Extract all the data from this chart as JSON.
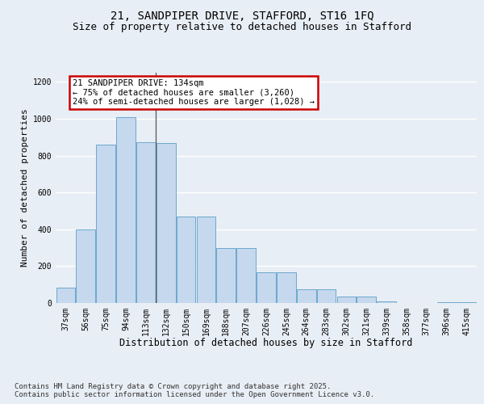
{
  "title_line1": "21, SANDPIPER DRIVE, STAFFORD, ST16 1FQ",
  "title_line2": "Size of property relative to detached houses in Stafford",
  "xlabel": "Distribution of detached houses by size in Stafford",
  "ylabel": "Number of detached properties",
  "categories": [
    "37sqm",
    "56sqm",
    "75sqm",
    "94sqm",
    "113sqm",
    "132sqm",
    "150sqm",
    "169sqm",
    "188sqm",
    "207sqm",
    "226sqm",
    "245sqm",
    "264sqm",
    "283sqm",
    "302sqm",
    "321sqm",
    "339sqm",
    "358sqm",
    "377sqm",
    "396sqm",
    "415sqm"
  ],
  "values": [
    82,
    400,
    858,
    1010,
    875,
    868,
    468,
    470,
    298,
    300,
    165,
    165,
    75,
    75,
    35,
    35,
    10,
    2,
    1,
    5,
    5
  ],
  "bar_color": "#c5d8ed",
  "bar_edge_color": "#5b9ec9",
  "vline_x": 4.5,
  "vline_color": "#555555",
  "annotation_text": "21 SANDPIPER DRIVE: 134sqm\n← 75% of detached houses are smaller (3,260)\n24% of semi-detached houses are larger (1,028) →",
  "annotation_box_facecolor": "#ffffff",
  "annotation_box_edgecolor": "#cc0000",
  "ylim": [
    0,
    1250
  ],
  "yticks": [
    0,
    200,
    400,
    600,
    800,
    1000,
    1200
  ],
  "background_color": "#e8eef5",
  "grid_color": "#ffffff",
  "title_fontsize": 10,
  "subtitle_fontsize": 9,
  "ylabel_fontsize": 8,
  "xlabel_fontsize": 8.5,
  "tick_fontsize": 7,
  "annotation_fontsize": 7.5,
  "footer_fontsize": 6.5,
  "footer_line1": "Contains HM Land Registry data © Crown copyright and database right 2025.",
  "footer_line2": "Contains public sector information licensed under the Open Government Licence v3.0."
}
